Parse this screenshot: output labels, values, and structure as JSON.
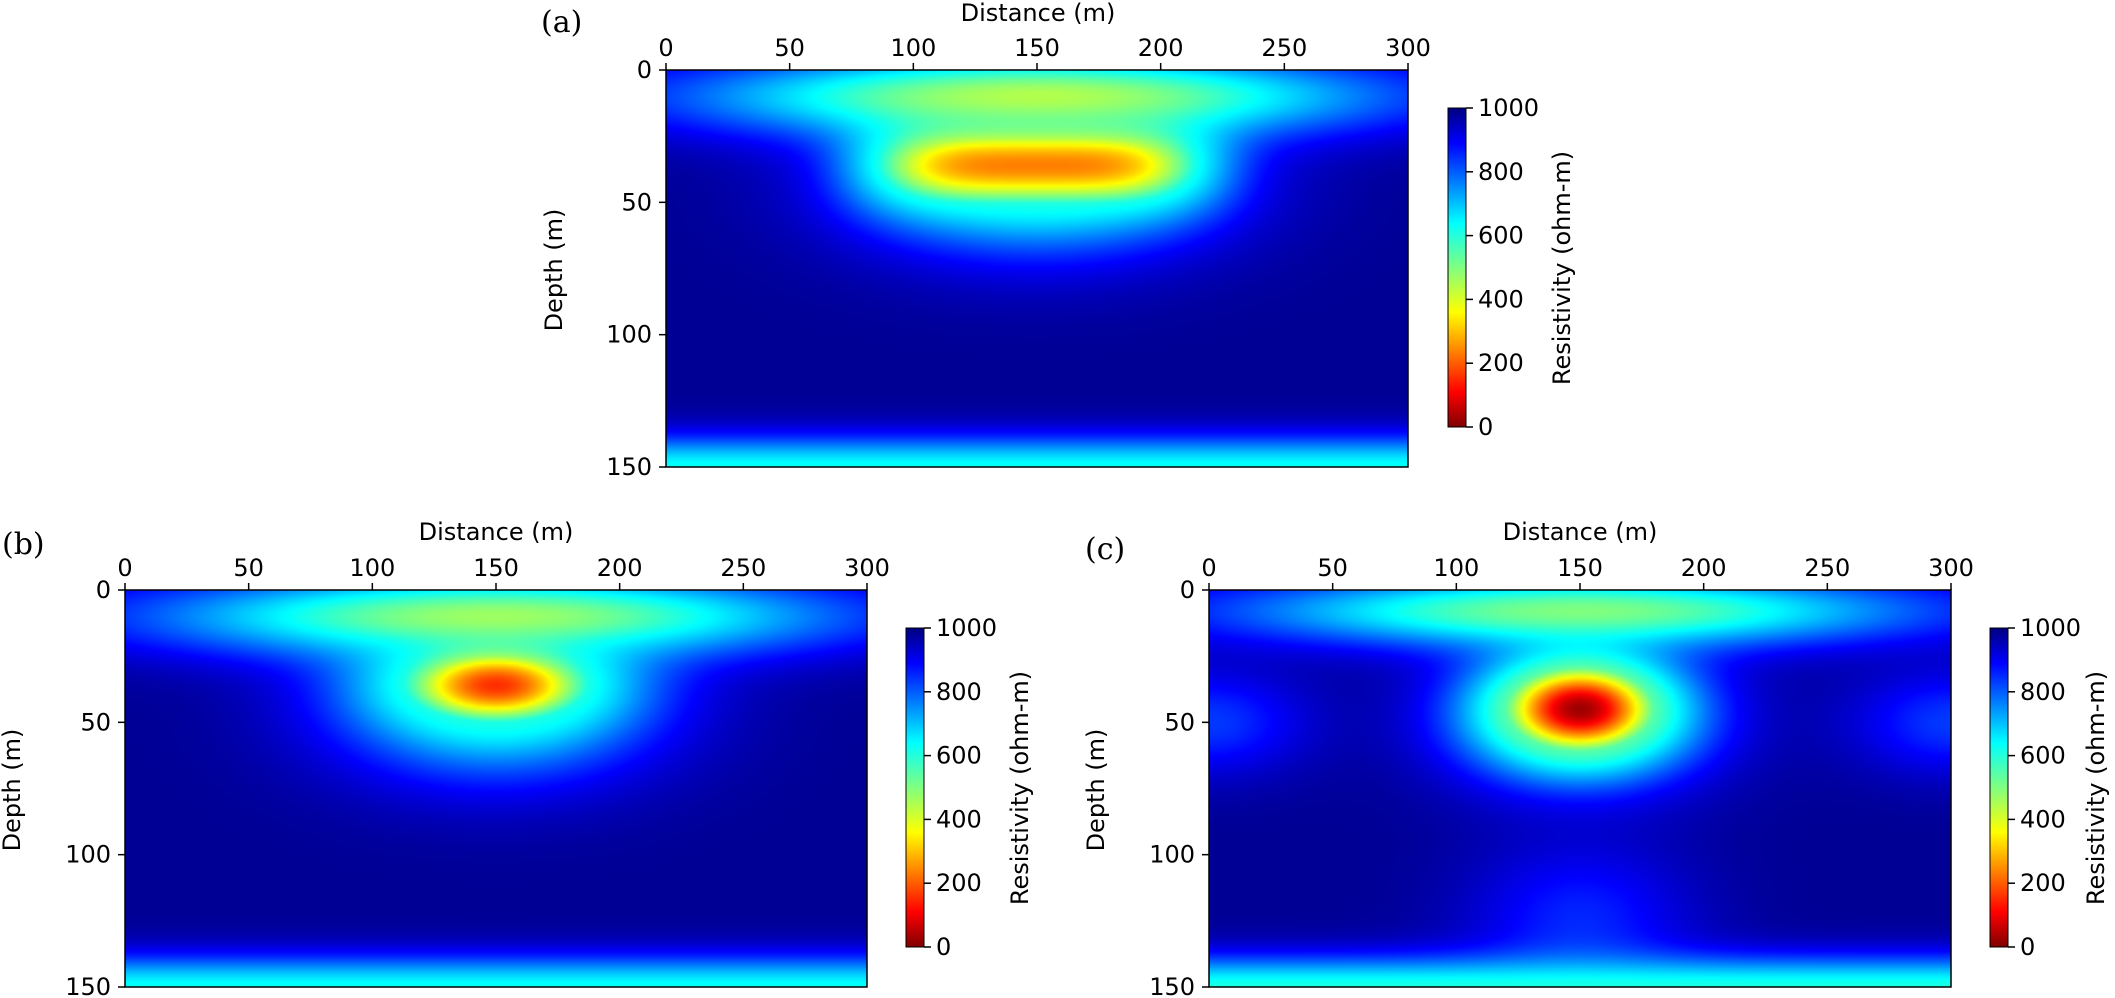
{
  "chart_data": [
    {
      "type": "heatmap",
      "panel_label": "(a)",
      "xlabel": "Distance (m)",
      "ylabel": "Depth (m)",
      "xlim": [
        0,
        300
      ],
      "ylim": [
        0,
        150
      ],
      "y_inverted": true,
      "x_axis_position": "top",
      "xticks": [
        0,
        50,
        100,
        150,
        200,
        250,
        300
      ],
      "yticks": [
        0,
        50,
        100,
        150
      ],
      "colormap": "jet_r",
      "colorbar": {
        "label": "Resistivity (ohm-m)",
        "range": [
          0,
          1000
        ],
        "ticks": [
          0,
          200,
          400,
          600,
          800,
          1000
        ]
      },
      "field": {
        "background_value": 980,
        "features": [
          {
            "kind": "anomaly",
            "center_distance": 150,
            "center_depth": 36,
            "spread_distance": 70,
            "spread_depth": 18,
            "shape_power": 4,
            "min_value": 250
          },
          {
            "kind": "anomaly",
            "center_distance": 150,
            "center_depth": 10,
            "spread_distance": 140,
            "spread_depth": 16,
            "shape_power": 2,
            "min_value": 450
          },
          {
            "kind": "anomaly",
            "center_distance": 150,
            "center_depth": 40,
            "spread_distance": 72,
            "spread_depth": 30,
            "shape_power": 2,
            "min_value": 600
          },
          {
            "kind": "layer",
            "depth": 150,
            "spread_depth": 12,
            "min_value": 620
          }
        ]
      }
    },
    {
      "type": "heatmap",
      "panel_label": "(b)",
      "xlabel": "Distance (m)",
      "ylabel": "Depth (m)",
      "xlim": [
        0,
        300
      ],
      "ylim": [
        0,
        150
      ],
      "y_inverted": true,
      "x_axis_position": "top",
      "xticks": [
        0,
        50,
        100,
        150,
        200,
        250,
        300
      ],
      "yticks": [
        0,
        50,
        100,
        150
      ],
      "colormap": "jet_r",
      "colorbar": {
        "label": "Resistivity (ohm-m)",
        "range": [
          0,
          1000
        ],
        "ticks": [
          0,
          200,
          400,
          600,
          800,
          1000
        ]
      },
      "field": {
        "background_value": 980,
        "features": [
          {
            "kind": "anomaly",
            "center_distance": 150,
            "center_depth": 36,
            "spread_distance": 42,
            "spread_depth": 16,
            "shape_power": 2,
            "min_value": 170
          },
          {
            "kind": "anomaly",
            "center_distance": 150,
            "center_depth": 10,
            "spread_distance": 140,
            "spread_depth": 16,
            "shape_power": 2,
            "min_value": 470
          },
          {
            "kind": "anomaly",
            "center_distance": 150,
            "center_depth": 42,
            "spread_distance": 65,
            "spread_depth": 30,
            "shape_power": 2,
            "min_value": 600
          },
          {
            "kind": "layer",
            "depth": 150,
            "spread_depth": 12,
            "min_value": 620
          }
        ]
      }
    },
    {
      "type": "heatmap",
      "panel_label": "(c)",
      "xlabel": "Distance (m)",
      "ylabel": "Depth (m)",
      "xlim": [
        0,
        300
      ],
      "ylim": [
        0,
        150
      ],
      "y_inverted": true,
      "x_axis_position": "top",
      "xticks": [
        0,
        50,
        100,
        150,
        200,
        250,
        300
      ],
      "yticks": [
        0,
        50,
        100,
        150
      ],
      "colormap": "jet_r",
      "colorbar": {
        "label": "Resistivity (ohm-m)",
        "range": [
          0,
          1000
        ],
        "ticks": [
          0,
          200,
          400,
          600,
          800,
          1000
        ]
      },
      "field": {
        "background_value": 980,
        "features": [
          {
            "kind": "anomaly",
            "center_distance": 150,
            "center_depth": 45,
            "spread_distance": 34,
            "spread_depth": 18,
            "shape_power": 2,
            "min_value": 30
          },
          {
            "kind": "anomaly",
            "center_distance": 150,
            "center_depth": 48,
            "spread_distance": 50,
            "spread_depth": 26,
            "shape_power": 2,
            "min_value": 540
          },
          {
            "kind": "anomaly",
            "center_distance": 150,
            "center_depth": 8,
            "spread_distance": 140,
            "spread_depth": 14,
            "shape_power": 2,
            "min_value": 500
          },
          {
            "kind": "anomaly",
            "center_distance": 0,
            "center_depth": 50,
            "spread_distance": 40,
            "spread_depth": 20,
            "shape_power": 2,
            "min_value": 820
          },
          {
            "kind": "anomaly",
            "center_distance": 300,
            "center_depth": 50,
            "spread_distance": 40,
            "spread_depth": 20,
            "shape_power": 2,
            "min_value": 820
          },
          {
            "kind": "anomaly",
            "center_distance": 150,
            "center_depth": 125,
            "spread_distance": 45,
            "spread_depth": 30,
            "shape_power": 2,
            "min_value": 840
          },
          {
            "kind": "layer",
            "depth": 150,
            "spread_depth": 12,
            "min_value": 600
          }
        ]
      }
    }
  ]
}
